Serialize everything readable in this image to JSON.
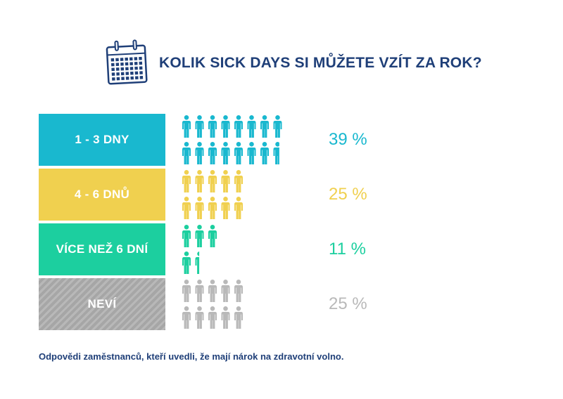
{
  "title": "KOLIK SICK DAYS SI MŮŽETE VZÍT ZA ROK?",
  "footnote": "Odpovědi zaměstnanců, kteří uvedli, že mají nárok na zdravotní volno.",
  "icons": {
    "header": "calendar-icon",
    "unit": "person-icon"
  },
  "chart_data": {
    "type": "bar",
    "categories": [
      "1 - 3 DNY",
      "4 - 6 DNŮ",
      "VÍCE NEŽ 6 DNÍ",
      "NEVÍ"
    ],
    "values": [
      39,
      25,
      11,
      25
    ],
    "labels": [
      "39 %",
      "25 %",
      "11 %",
      "25 %"
    ],
    "colors": [
      "#19b8cf",
      "#f0d04f",
      "#1ccf9f",
      "#b9b9b9"
    ],
    "ylim": [
      0,
      100
    ],
    "grid": false
  }
}
